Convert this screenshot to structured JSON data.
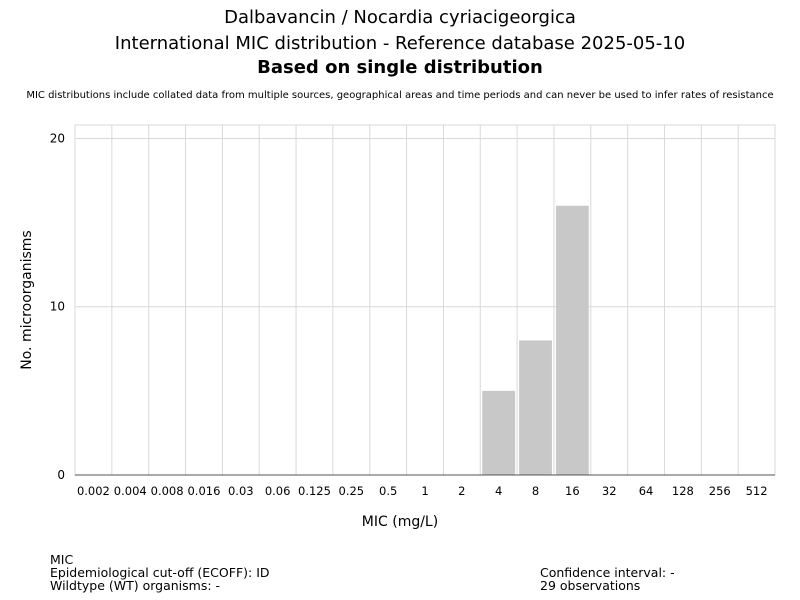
{
  "chart_data": {
    "type": "bar",
    "title": "Dalbavancin / Nocardia cyriacigeorgica",
    "subtitle": "International MIC distribution - Reference database 2025-05-10",
    "subtitle2": "Based on single distribution",
    "note": "MIC distributions include collated data from multiple sources, geographical areas and time periods and can never be used to infer rates of resistance",
    "xlabel": "MIC (mg/L)",
    "ylabel": "No. microorganisms",
    "categories": [
      "0.002",
      "0.004",
      "0.008",
      "0.016",
      "0.03",
      "0.06",
      "0.125",
      "0.25",
      "0.5",
      "1",
      "2",
      "4",
      "8",
      "16",
      "32",
      "64",
      "128",
      "256",
      "512"
    ],
    "values": [
      0,
      0,
      0,
      0,
      0,
      0,
      0,
      0,
      0,
      0,
      0,
      5,
      8,
      16,
      0,
      0,
      0,
      0,
      0
    ],
    "yticks": [
      0,
      10,
      20
    ],
    "ylim": [
      0,
      20.8
    ],
    "grid": true,
    "bar_color": "#c8c8c8"
  },
  "footer": {
    "mic": "MIC",
    "ecoff": "Epidemiological cut-off (ECOFF): ID",
    "wt": "Wildtype (WT) organisms:  -",
    "ci": "Confidence interval: -",
    "obs": "29 observations"
  }
}
